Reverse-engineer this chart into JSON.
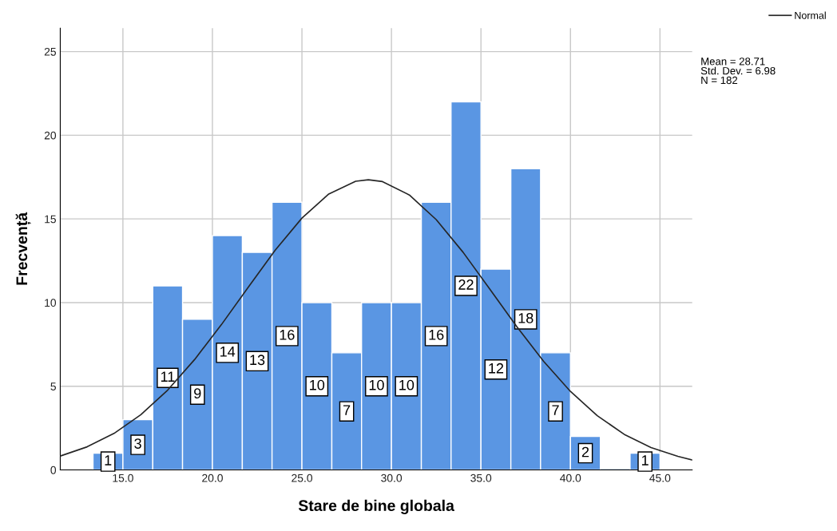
{
  "chart_data": {
    "type": "histogram",
    "xlabel": "Stare de bine globala",
    "ylabel": "Frecvență",
    "bins": [
      13.33,
      15,
      16.67,
      18.33,
      20,
      21.67,
      23.33,
      25,
      26.67,
      28.33,
      30,
      31.67,
      33.33,
      35,
      36.67,
      38.33,
      40,
      41.67,
      43.33,
      45
    ],
    "values": [
      1,
      3,
      11,
      9,
      14,
      13,
      16,
      10,
      7,
      10,
      10,
      16,
      22,
      12,
      18,
      7,
      2,
      0,
      1
    ],
    "value_labels": [
      "1",
      "3",
      "11",
      "9",
      "14",
      "13",
      "16",
      "10",
      "7",
      "10",
      "10",
      "16",
      "22",
      "12",
      "18",
      "7",
      "2",
      null,
      "1"
    ],
    "color": "#5a96e3",
    "series": [
      {
        "name": "Normal",
        "type": "line",
        "color": "#262626",
        "x": [
          11.5,
          13,
          14.5,
          16,
          17.5,
          19,
          20.5,
          22,
          23.5,
          25,
          26.5,
          28,
          28.71,
          29.5,
          31,
          32.5,
          34,
          35.5,
          37,
          38.5,
          40,
          41.5,
          43,
          44.5,
          46,
          46.8
        ],
        "values": [
          0.83,
          1.38,
          2.18,
          3.3,
          4.77,
          6.59,
          8.68,
          10.92,
          13.12,
          15.05,
          16.49,
          17.25,
          17.34,
          17.23,
          16.43,
          14.96,
          13.01,
          10.8,
          8.57,
          6.49,
          4.69,
          3.24,
          2.13,
          1.34,
          0.81,
          0.6
        ]
      }
    ],
    "annotations": [
      "Mean = 28.71",
      "Std. Dev. = 6.98",
      "N = 182"
    ],
    "xlim": [
      11.5,
      46.8
    ],
    "ylim": [
      0,
      26.4
    ],
    "xticks": [
      {
        "value": 15,
        "label": "15.0"
      },
      {
        "value": 20,
        "label": "20.0"
      },
      {
        "value": 25,
        "label": "25.0"
      },
      {
        "value": 30,
        "label": "30.0"
      },
      {
        "value": 35,
        "label": "35.0"
      },
      {
        "value": 40,
        "label": "40.0"
      },
      {
        "value": 45,
        "label": "45.0"
      }
    ],
    "yticks": [
      0,
      5,
      10,
      15,
      20,
      25
    ],
    "grid": true,
    "legend": "top right"
  }
}
